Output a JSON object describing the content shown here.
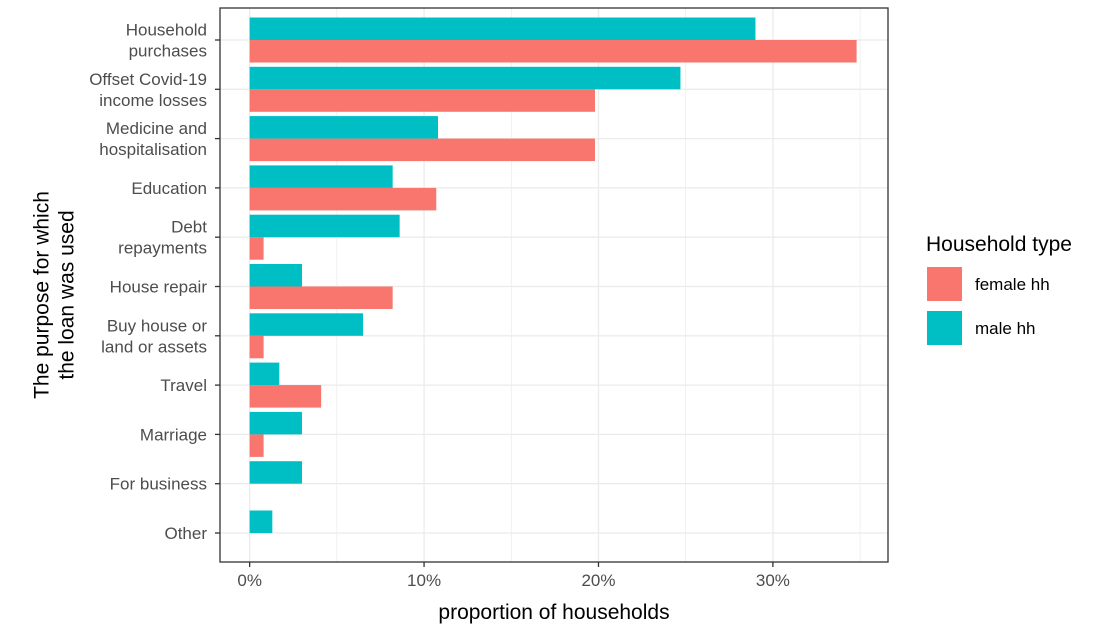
{
  "chart_data": {
    "type": "bar",
    "orientation": "horizontal",
    "title": "",
    "xlabel": "proportion of households",
    "ylabel": "The purpose for which\nthe loan was used",
    "categories": [
      "Household\npurchases",
      "Offset Covid-19\nincome losses",
      "Medicine and\nhospitalisation",
      "Education",
      "Debt\nrepayments",
      "House repair",
      "Buy house or\nland or assets",
      "Travel",
      "Marriage",
      "For business",
      "Other"
    ],
    "series": [
      {
        "name": "female hh",
        "color": "#F8766D",
        "values": [
          0.348,
          0.198,
          0.198,
          0.107,
          0.008,
          0.082,
          0.008,
          0.041,
          0.008,
          null,
          null
        ]
      },
      {
        "name": "male hh",
        "color": "#00BFC4",
        "values": [
          0.29,
          0.247,
          0.108,
          0.082,
          0.086,
          0.03,
          0.065,
          0.017,
          0.03,
          0.03,
          0.013
        ]
      }
    ],
    "xlim": [
      -0.017,
      0.366
    ],
    "xticks": [
      0,
      0.1,
      0.2,
      0.3
    ],
    "xtick_labels": [
      "0%",
      "10%",
      "20%",
      "30%"
    ],
    "grid": true,
    "legend": {
      "title": "Household type",
      "position": "right",
      "entries": [
        "female hh",
        "male hh"
      ]
    }
  }
}
